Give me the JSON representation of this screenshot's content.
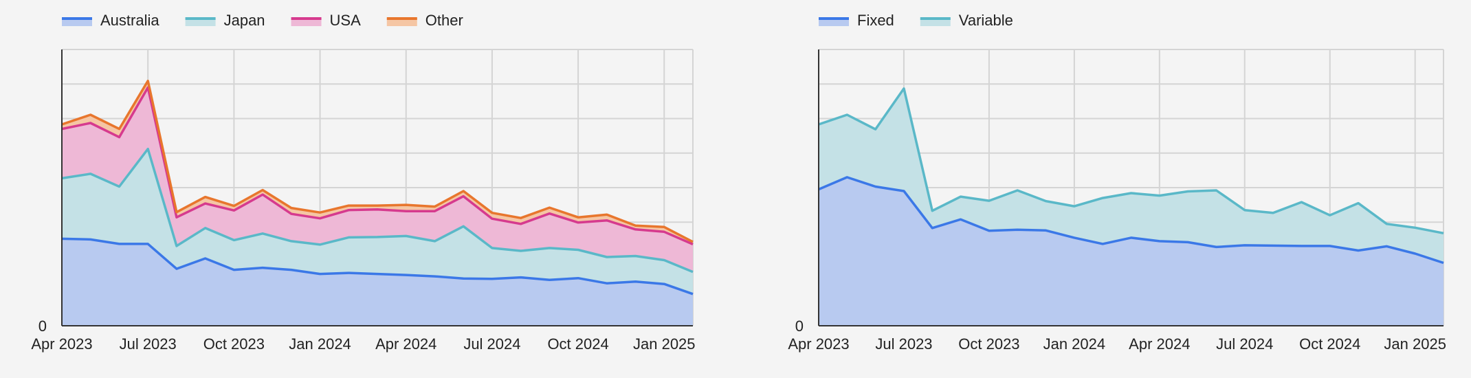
{
  "chart_data": [
    {
      "type": "area",
      "stacked": true,
      "x": [
        "2023-04",
        "2023-05",
        "2023-06",
        "2023-07",
        "2023-08",
        "2023-09",
        "2023-10",
        "2023-11",
        "2023-12",
        "2024-01",
        "2024-02",
        "2024-03",
        "2024-04",
        "2024-05",
        "2024-06",
        "2024-07",
        "2024-08",
        "2024-09",
        "2024-10",
        "2024-11",
        "2024-12",
        "2025-01",
        "2025-02"
      ],
      "x_ticks": [
        {
          "x": "2023-04",
          "label": "Apr 2023"
        },
        {
          "x": "2023-07",
          "label": "Jul 2023"
        },
        {
          "x": "2023-10",
          "label": "Oct 2023"
        },
        {
          "x": "2024-01",
          "label": "Jan 2024"
        },
        {
          "x": "2024-04",
          "label": "Apr 2024"
        },
        {
          "x": "2024-07",
          "label": "Jul 2024"
        },
        {
          "x": "2024-10",
          "label": "Oct 2024"
        },
        {
          "x": "2025-01",
          "label": "Jan 2025"
        }
      ],
      "y_tick_label": "0",
      "ylim": [
        0,
        8
      ],
      "grid": true,
      "legend": "top-left",
      "series": [
        {
          "name": "Australia",
          "color": "#3b78e7",
          "fill": "#b8caf0",
          "values": [
            2.52,
            2.5,
            2.37,
            2.37,
            1.65,
            1.95,
            1.62,
            1.68,
            1.62,
            1.5,
            1.53,
            1.5,
            1.47,
            1.43,
            1.37,
            1.36,
            1.4,
            1.33,
            1.38,
            1.23,
            1.28,
            1.21,
            0.92
          ]
        },
        {
          "name": "Japan",
          "color": "#5ab8c8",
          "fill": "#c4e1e6",
          "values": [
            1.75,
            1.9,
            1.66,
            2.75,
            0.66,
            0.88,
            0.86,
            0.99,
            0.83,
            0.85,
            1.03,
            1.07,
            1.13,
            1.02,
            1.51,
            0.89,
            0.77,
            0.92,
            0.82,
            0.76,
            0.74,
            0.69,
            0.64
          ]
        },
        {
          "name": "USA",
          "color": "#d63a8e",
          "fill": "#eeb8d6",
          "values": [
            1.43,
            1.47,
            1.43,
            1.78,
            0.83,
            0.71,
            0.86,
            1.13,
            0.79,
            0.76,
            0.79,
            0.8,
            0.72,
            0.87,
            0.87,
            0.85,
            0.78,
            1.0,
            0.79,
            1.06,
            0.77,
            0.82,
            0.8
          ]
        },
        {
          "name": "Other",
          "color": "#e8762d",
          "fill": "#f5c6a4",
          "values": [
            0.13,
            0.24,
            0.24,
            0.19,
            0.15,
            0.19,
            0.13,
            0.13,
            0.17,
            0.17,
            0.13,
            0.11,
            0.18,
            0.13,
            0.15,
            0.17,
            0.17,
            0.17,
            0.15,
            0.17,
            0.11,
            0.14,
            0.07
          ]
        }
      ]
    },
    {
      "type": "area",
      "stacked": true,
      "x": [
        "2023-04",
        "2023-05",
        "2023-06",
        "2023-07",
        "2023-08",
        "2023-09",
        "2023-10",
        "2023-11",
        "2023-12",
        "2024-01",
        "2024-02",
        "2024-03",
        "2024-04",
        "2024-05",
        "2024-06",
        "2024-07",
        "2024-08",
        "2024-09",
        "2024-10",
        "2024-11",
        "2024-12",
        "2025-01",
        "2025-02"
      ],
      "x_ticks": [
        {
          "x": "2023-04",
          "label": "Apr 2023"
        },
        {
          "x": "2023-07",
          "label": "Jul 2023"
        },
        {
          "x": "2023-10",
          "label": "Oct 2023"
        },
        {
          "x": "2024-01",
          "label": "Jan 2024"
        },
        {
          "x": "2024-04",
          "label": "Apr 2024"
        },
        {
          "x": "2024-07",
          "label": "Jul 2024"
        },
        {
          "x": "2024-10",
          "label": "Oct 2024"
        },
        {
          "x": "2025-01",
          "label": "Jan 2025"
        }
      ],
      "y_tick_label": "0",
      "ylim": [
        0,
        8
      ],
      "grid": true,
      "legend": "top-left",
      "series": [
        {
          "name": "Fixed",
          "color": "#3b78e7",
          "fill": "#b8caf0",
          "values": [
            3.95,
            4.3,
            4.03,
            3.9,
            2.83,
            3.08,
            2.75,
            2.78,
            2.76,
            2.55,
            2.37,
            2.55,
            2.45,
            2.42,
            2.28,
            2.33,
            2.32,
            2.31,
            2.31,
            2.18,
            2.3,
            2.09,
            1.82
          ]
        },
        {
          "name": "Variable",
          "color": "#5ab8c8",
          "fill": "#c4e1e6",
          "values": [
            1.88,
            1.81,
            1.66,
            2.97,
            0.5,
            0.66,
            0.87,
            1.14,
            0.85,
            0.91,
            1.33,
            1.29,
            1.32,
            1.47,
            1.64,
            1.02,
            0.95,
            1.27,
            0.89,
            1.37,
            0.65,
            0.75,
            0.86
          ]
        }
      ]
    }
  ]
}
